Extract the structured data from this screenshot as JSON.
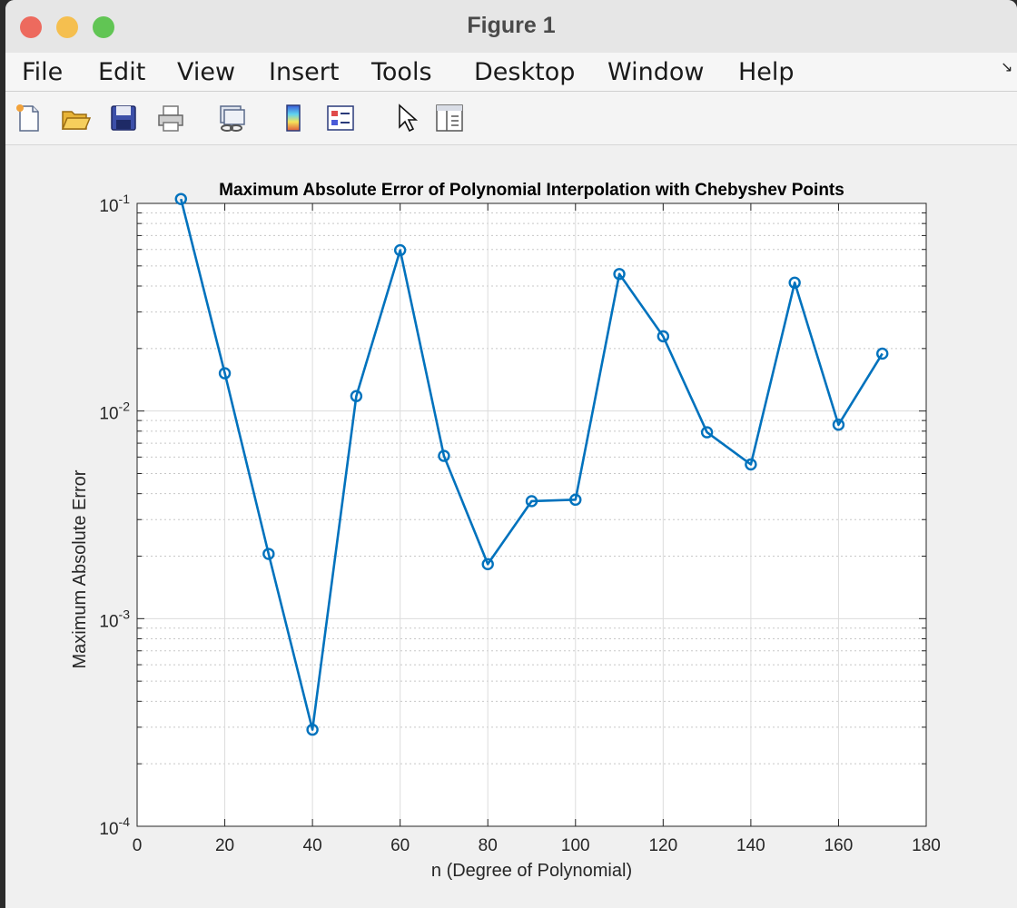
{
  "window": {
    "title": "Figure 1",
    "traffic_lights": [
      "#ed6a5e",
      "#f5bf4f",
      "#61c554"
    ]
  },
  "menubar": {
    "items": [
      "File",
      "Edit",
      "View",
      "Insert",
      "Tools",
      "Desktop",
      "Window",
      "Help"
    ],
    "overflow_icon": "arrow-icon"
  },
  "toolbar": {
    "icons": [
      "new-figure-icon",
      "open-file-icon",
      "save-icon",
      "print-icon",
      "link-plot-icon",
      "colorbar-icon",
      "legend-icon",
      "select-pointer-icon",
      "property-panel-icon"
    ]
  },
  "chart_data": {
    "type": "line",
    "title": "Maximum Absolute Error of Polynomial Interpolation with Chebyshev Points",
    "xlabel": "n (Degree of Polynomial)",
    "ylabel": "Maximum Absolute Error",
    "xlim": [
      0,
      180
    ],
    "ylim": [
      0.0001,
      0.1
    ],
    "yscale": "log",
    "xticks": [
      "0",
      "20",
      "40",
      "60",
      "80",
      "100",
      "120",
      "140",
      "160",
      "180"
    ],
    "yticks": [
      {
        "base": "10",
        "exp": "-4"
      },
      {
        "base": "10",
        "exp": "-3"
      },
      {
        "base": "10",
        "exp": "-2"
      },
      {
        "base": "10",
        "exp": "-1"
      }
    ],
    "grid": true,
    "minor_grid": true,
    "marker": "circle",
    "color": "#0072bd",
    "series": [
      {
        "x": [
          10,
          20,
          30,
          40,
          50,
          60,
          70,
          80,
          90,
          100,
          110,
          120,
          130,
          140,
          150,
          160,
          170
        ],
        "values": [
          0.105,
          0.0152,
          0.00205,
          0.000292,
          0.0118,
          0.0595,
          0.00608,
          0.00183,
          0.00368,
          0.00374,
          0.0457,
          0.0229,
          0.0079,
          0.00553,
          0.0415,
          0.00859,
          0.0189
        ]
      }
    ]
  }
}
